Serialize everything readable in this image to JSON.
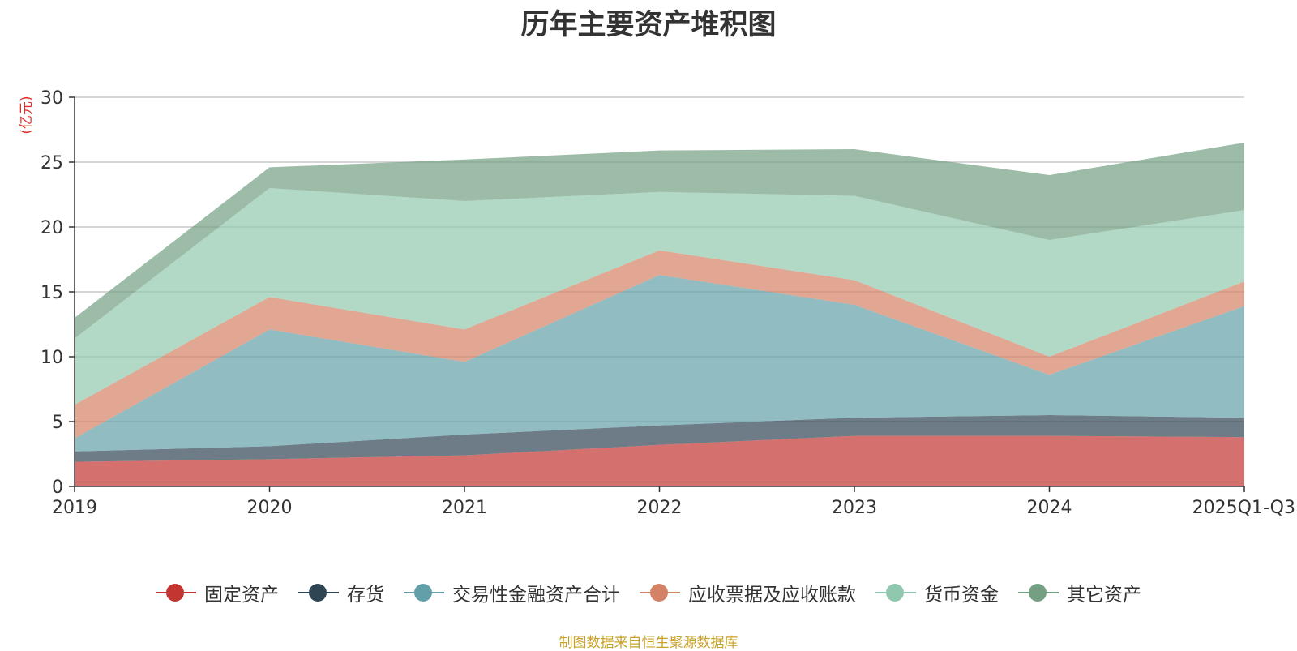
{
  "chart_data": {
    "type": "area",
    "stacked": true,
    "title": "历年主要资产堆积图",
    "ylabel": "(亿元)",
    "xlabel": "",
    "ylim": [
      0,
      30
    ],
    "yticks": [
      0,
      5,
      10,
      15,
      20,
      25,
      30
    ],
    "categories": [
      "2019",
      "2020",
      "2021",
      "2022",
      "2023",
      "2024",
      "2025Q1-Q3"
    ],
    "series": [
      {
        "name": "固定资产",
        "color": "#c23531",
        "values": [
          1.9,
          2.1,
          2.4,
          3.2,
          3.9,
          3.9,
          3.8
        ]
      },
      {
        "name": "存货",
        "color": "#2f4554",
        "values": [
          0.8,
          1.0,
          1.6,
          1.5,
          1.4,
          1.6,
          1.5
        ]
      },
      {
        "name": "交易性金融资产合计",
        "color": "#61a0a8",
        "values": [
          1.0,
          9.0,
          5.6,
          11.6,
          8.7,
          3.1,
          8.6
        ]
      },
      {
        "name": "应收票据及应收账款",
        "color": "#d48265",
        "values": [
          2.6,
          2.5,
          2.5,
          1.9,
          1.9,
          1.4,
          1.9
        ]
      },
      {
        "name": "货币资金",
        "color": "#91c7ae",
        "values": [
          5.1,
          8.4,
          9.9,
          4.5,
          6.5,
          9.0,
          5.5
        ]
      },
      {
        "name": "其它资产",
        "color": "#749f83",
        "values": [
          1.6,
          1.6,
          3.2,
          3.2,
          3.6,
          5.0,
          5.2
        ]
      }
    ],
    "legend_position": "bottom",
    "grid": true
  },
  "source_note": "制图数据来自恒生聚源数据库"
}
